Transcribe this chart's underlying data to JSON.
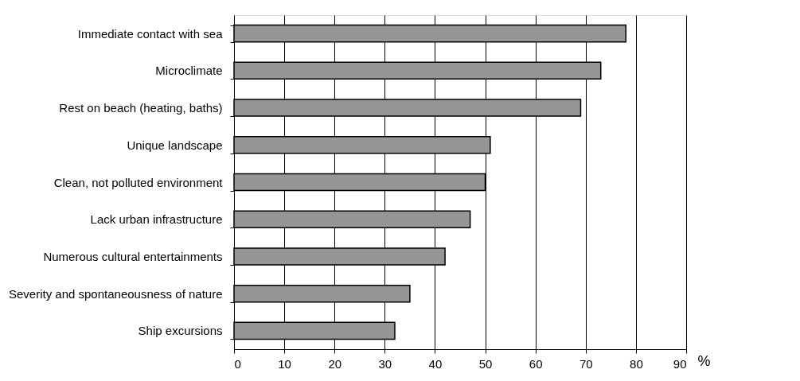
{
  "chart_data": {
    "type": "bar",
    "orientation": "horizontal",
    "xlabel": "%",
    "categories": [
      "Immediate contact with sea",
      "Microclimate",
      "Rest on beach (heating, baths)",
      "Unique landscape",
      "Clean, not polluted environment",
      "Lack urban infrastructure",
      "Numerous cultural entertainments",
      "Severity and spontaneousness of nature",
      "Ship excursions"
    ],
    "values": [
      78,
      73,
      69,
      51,
      50,
      47,
      42,
      35,
      32
    ],
    "color": "#969696",
    "xlim": [
      0,
      90
    ],
    "xticks": [
      0,
      10,
      20,
      30,
      40,
      50,
      60,
      70,
      80,
      90
    ],
    "grid": "x"
  }
}
